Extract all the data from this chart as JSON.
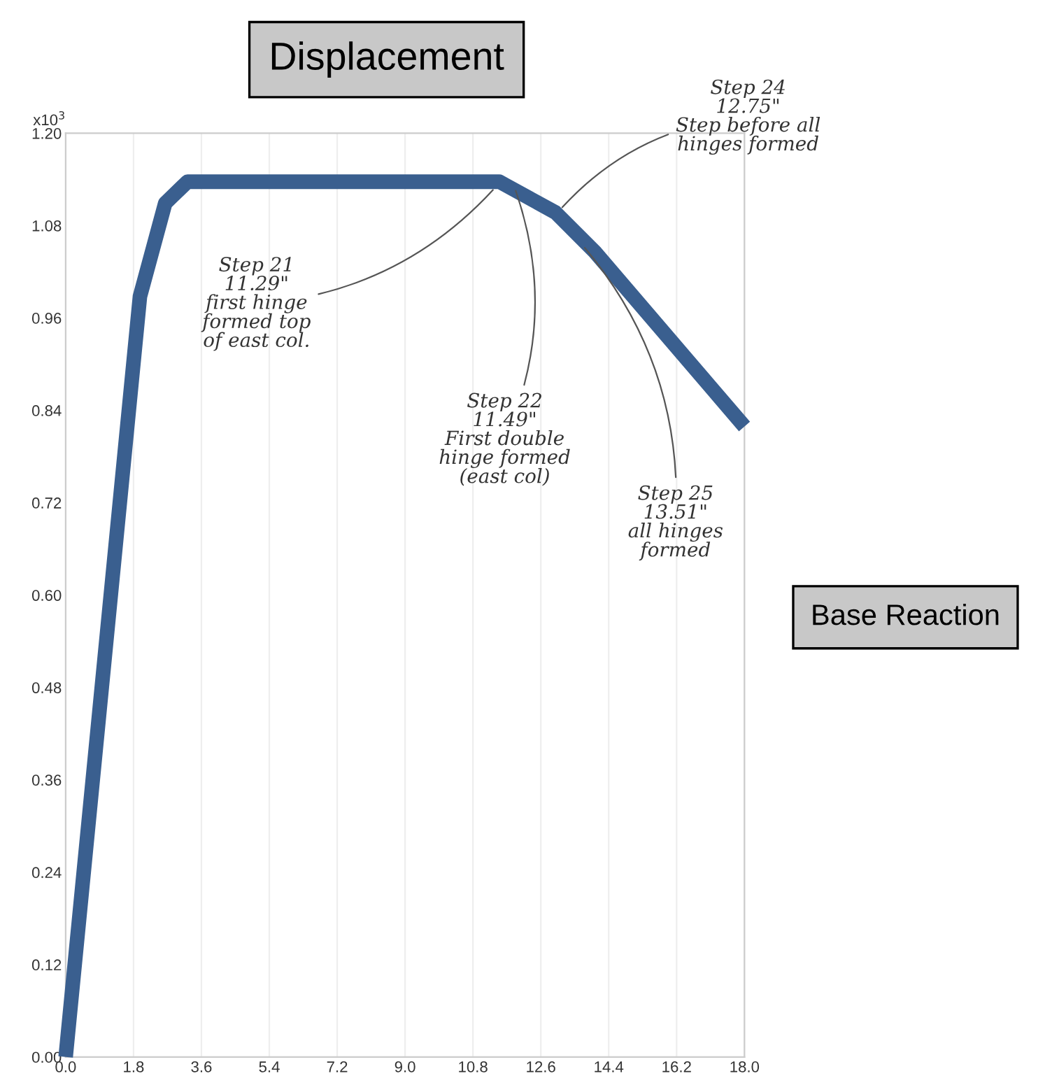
{
  "chart_data": {
    "type": "line",
    "xlabel": "Displacement",
    "ylabel": "Base Reaction",
    "x": [
      0,
      1.97,
      2.64,
      3.23,
      11.5,
      12.99,
      14.03,
      18.0
    ],
    "series": [
      {
        "color": "#3a5f8f",
        "values": [
          0,
          0.988,
          1.109,
          1.137,
          1.137,
          1.097,
          1.046,
          0.819
        ]
      }
    ],
    "xlim": [
      0,
      18
    ],
    "ylim": [
      0,
      1.2
    ],
    "xticks": [
      {
        "value": 0,
        "label": "0.0"
      },
      1.8,
      3.6,
      5.4,
      7.2,
      {
        "value": 9,
        "label": "9.0"
      },
      10.8,
      12.6,
      14.4,
      16.2,
      {
        "value": 18,
        "label": "18.0"
      }
    ],
    "yticks": [
      {
        "value": 0,
        "label": "0.00"
      },
      0.12,
      0.24,
      0.36,
      0.48,
      {
        "value": 0.6,
        "label": "0.60"
      },
      0.72,
      0.84,
      0.96,
      1.08,
      {
        "value": 1.2,
        "label": "1.20"
      }
    ],
    "grid": "x",
    "marker": "none",
    "line_style": "solid",
    "annotations": [
      "x10$^{3}$",
      {
        "text": "Step 21\n11.29\"\nfirst hinge\nformed top\nof east col.",
        "x": 11.4,
        "y": 1.13
      },
      {
        "text": "Step 22\n11.49\"\nFirst double\nhinge formed\n(east col)",
        "x": 11.9,
        "y": 1.13
      },
      {
        "text": "Step 24\n12.75\"\nStep before all\nhinges formed",
        "x": 13.1,
        "y": 1.1
      },
      {
        "text": "Step 25\n13.51\"\nall hinges\nformed",
        "x": 13.7,
        "y": 1.055
      }
    ]
  }
}
